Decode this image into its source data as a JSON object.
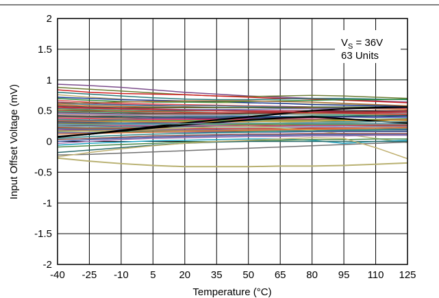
{
  "chart_data": {
    "type": "line",
    "title": "",
    "xlabel": "Temperature (°C)",
    "ylabel": "Input Offset Voltage (mV)",
    "x": [
      -40,
      -25,
      -10,
      5,
      20,
      35,
      50,
      65,
      80,
      95,
      110,
      125
    ],
    "xlim": [
      -40,
      125
    ],
    "ylim": [
      -2,
      2
    ],
    "yticks": [
      -2,
      -1.5,
      -1,
      -0.5,
      0,
      0.5,
      1,
      1.5,
      2
    ],
    "ytick_labels": [
      "-2",
      "-1.5",
      "-1",
      "-0.5",
      "0",
      "0.5",
      "1",
      "1.5",
      "2"
    ],
    "xtick_labels": [
      "-40",
      "-25",
      "-10",
      "5",
      "20",
      "35",
      "50",
      "65",
      "80",
      "95",
      "110",
      "125"
    ],
    "grid": true,
    "annotation": {
      "vs_prefix": "V",
      "vs_sub": "S",
      "vs_value": " = 36V",
      "units": "63 Units"
    },
    "series": [
      {
        "color": "#7a4a8a",
        "values": [
          0.93,
          0.91,
          0.88,
          0.84,
          0.8,
          0.77,
          0.74,
          0.72,
          0.7,
          0.68,
          0.66,
          0.64
        ]
      },
      {
        "color": "#6b7a30",
        "values": [
          0.88,
          0.85,
          0.82,
          0.79,
          0.76,
          0.74,
          0.73,
          0.74,
          0.75,
          0.74,
          0.72,
          0.7
        ]
      },
      {
        "color": "#d02020",
        "values": [
          0.84,
          0.8,
          0.78,
          0.77,
          0.76,
          0.74,
          0.72,
          0.7,
          0.69,
          0.67,
          0.65,
          0.63
        ]
      },
      {
        "color": "#2a7a7a",
        "values": [
          0.8,
          0.77,
          0.74,
          0.71,
          0.69,
          0.68,
          0.68,
          0.69,
          0.7,
          0.7,
          0.69,
          0.68
        ]
      },
      {
        "color": "#c2b070",
        "values": [
          0.76,
          0.72,
          0.69,
          0.66,
          0.64,
          0.63,
          0.63,
          0.62,
          0.61,
          0.6,
          0.59,
          0.58
        ]
      },
      {
        "color": "#1a3a9a",
        "values": [
          0.72,
          0.7,
          0.68,
          0.67,
          0.66,
          0.65,
          0.63,
          0.62,
          0.6,
          0.59,
          0.58,
          0.57
        ]
      },
      {
        "color": "#2a8a3a",
        "values": [
          0.7,
          0.67,
          0.65,
          0.64,
          0.64,
          0.64,
          0.65,
          0.66,
          0.67,
          0.68,
          0.68,
          0.69
        ]
      },
      {
        "color": "#e05050",
        "values": [
          0.67,
          0.64,
          0.62,
          0.61,
          0.6,
          0.59,
          0.58,
          0.57,
          0.56,
          0.55,
          0.54,
          0.53
        ]
      },
      {
        "color": "#8a3a6a",
        "values": [
          0.64,
          0.62,
          0.6,
          0.59,
          0.58,
          0.58,
          0.57,
          0.57,
          0.56,
          0.56,
          0.55,
          0.55
        ]
      },
      {
        "color": "#4a8aa0",
        "values": [
          0.62,
          0.6,
          0.59,
          0.58,
          0.58,
          0.58,
          0.57,
          0.56,
          0.55,
          0.54,
          0.53,
          0.52
        ]
      },
      {
        "color": "#d06a30",
        "values": [
          0.6,
          0.58,
          0.57,
          0.56,
          0.56,
          0.55,
          0.55,
          0.55,
          0.54,
          0.54,
          0.53,
          0.52
        ]
      },
      {
        "color": "#3a5a2a",
        "values": [
          0.58,
          0.56,
          0.55,
          0.55,
          0.55,
          0.55,
          0.55,
          0.55,
          0.56,
          0.56,
          0.56,
          0.56
        ]
      },
      {
        "color": "#b02a4a",
        "values": [
          0.57,
          0.55,
          0.54,
          0.53,
          0.52,
          0.51,
          0.5,
          0.5,
          0.49,
          0.49,
          0.48,
          0.48
        ]
      },
      {
        "color": "#6a6aaa",
        "values": [
          0.55,
          0.54,
          0.53,
          0.52,
          0.52,
          0.52,
          0.52,
          0.53,
          0.53,
          0.54,
          0.54,
          0.55
        ]
      },
      {
        "color": "#2a6a8a",
        "values": [
          0.53,
          0.52,
          0.51,
          0.5,
          0.5,
          0.5,
          0.49,
          0.48,
          0.47,
          0.46,
          0.45,
          0.44
        ]
      },
      {
        "color": "#9a9a40",
        "values": [
          0.52,
          0.51,
          0.5,
          0.49,
          0.48,
          0.47,
          0.47,
          0.46,
          0.46,
          0.45,
          0.44,
          0.44
        ]
      },
      {
        "color": "#c03a3a",
        "values": [
          0.5,
          0.49,
          0.48,
          0.48,
          0.47,
          0.47,
          0.47,
          0.47,
          0.47,
          0.47,
          0.47,
          0.47
        ]
      },
      {
        "color": "#3a9a6a",
        "values": [
          0.49,
          0.48,
          0.47,
          0.46,
          0.45,
          0.45,
          0.44,
          0.44,
          0.43,
          0.43,
          0.42,
          0.42
        ]
      },
      {
        "color": "#7a2a2a",
        "values": [
          0.47,
          0.46,
          0.45,
          0.45,
          0.45,
          0.45,
          0.46,
          0.46,
          0.47,
          0.48,
          0.49,
          0.5
        ]
      },
      {
        "color": "#5a7ad0",
        "values": [
          0.46,
          0.45,
          0.44,
          0.43,
          0.42,
          0.42,
          0.41,
          0.41,
          0.4,
          0.4,
          0.39,
          0.39
        ]
      },
      {
        "color": "#a0a0a0",
        "values": [
          0.45,
          0.44,
          0.43,
          0.43,
          0.43,
          0.43,
          0.43,
          0.44,
          0.44,
          0.45,
          0.45,
          0.46
        ]
      },
      {
        "color": "#d08a9a",
        "values": [
          0.44,
          0.43,
          0.42,
          0.41,
          0.4,
          0.4,
          0.39,
          0.38,
          0.37,
          0.36,
          0.35,
          0.34
        ]
      },
      {
        "color": "#1a5a5a",
        "values": [
          0.42,
          0.41,
          0.41,
          0.4,
          0.4,
          0.4,
          0.4,
          0.4,
          0.41,
          0.41,
          0.42,
          0.42
        ]
      },
      {
        "color": "#8a5a2a",
        "values": [
          0.41,
          0.4,
          0.39,
          0.38,
          0.38,
          0.37,
          0.37,
          0.36,
          0.36,
          0.35,
          0.35,
          0.34
        ]
      },
      {
        "color": "#3a3a8a",
        "values": [
          0.4,
          0.39,
          0.38,
          0.38,
          0.38,
          0.38,
          0.38,
          0.39,
          0.39,
          0.4,
          0.4,
          0.41
        ]
      },
      {
        "color": "#c0c060",
        "values": [
          0.39,
          0.38,
          0.37,
          0.36,
          0.35,
          0.34,
          0.33,
          0.32,
          0.31,
          0.3,
          0.29,
          0.28
        ]
      },
      {
        "color": "#e02a6a",
        "values": [
          0.38,
          0.37,
          0.36,
          0.36,
          0.36,
          0.36,
          0.36,
          0.36,
          0.36,
          0.36,
          0.36,
          0.36
        ]
      },
      {
        "color": "#2a9aaa",
        "values": [
          0.36,
          0.35,
          0.35,
          0.34,
          0.34,
          0.34,
          0.33,
          0.33,
          0.33,
          0.32,
          0.32,
          0.32
        ]
      },
      {
        "color": "#6a8a3a",
        "values": [
          0.35,
          0.34,
          0.34,
          0.34,
          0.34,
          0.34,
          0.35,
          0.35,
          0.35,
          0.36,
          0.36,
          0.37
        ]
      },
      {
        "color": "#aa3aaa",
        "values": [
          0.34,
          0.33,
          0.32,
          0.31,
          0.31,
          0.3,
          0.3,
          0.29,
          0.29,
          0.28,
          0.28,
          0.27
        ]
      },
      {
        "color": "#d0a030",
        "values": [
          0.33,
          0.32,
          0.32,
          0.32,
          0.32,
          0.32,
          0.32,
          0.33,
          0.33,
          0.34,
          0.34,
          0.35
        ]
      },
      {
        "color": "#4a4a4a",
        "values": [
          0.32,
          0.31,
          0.3,
          0.3,
          0.29,
          0.29,
          0.28,
          0.28,
          0.27,
          0.27,
          0.26,
          0.26
        ]
      },
      {
        "color": "#3a7ac0",
        "values": [
          0.31,
          0.3,
          0.3,
          0.29,
          0.29,
          0.29,
          0.29,
          0.29,
          0.29,
          0.29,
          0.29,
          0.29
        ]
      },
      {
        "color": "#b04a2a",
        "values": [
          0.3,
          0.29,
          0.28,
          0.28,
          0.27,
          0.27,
          0.27,
          0.26,
          0.26,
          0.26,
          0.25,
          0.25
        ]
      },
      {
        "color": "#5aaa5a",
        "values": [
          0.29,
          0.28,
          0.28,
          0.28,
          0.28,
          0.28,
          0.28,
          0.28,
          0.28,
          0.28,
          0.28,
          0.28
        ]
      },
      {
        "color": "#8a8ad0",
        "values": [
          0.28,
          0.27,
          0.27,
          0.26,
          0.26,
          0.26,
          0.25,
          0.25,
          0.25,
          0.24,
          0.24,
          0.24
        ]
      },
      {
        "color": "#c05a7a",
        "values": [
          0.27,
          0.26,
          0.26,
          0.25,
          0.25,
          0.25,
          0.25,
          0.25,
          0.26,
          0.26,
          0.27,
          0.27
        ]
      },
      {
        "color": "#2a4a6a",
        "values": [
          0.25,
          0.25,
          0.24,
          0.24,
          0.24,
          0.24,
          0.23,
          0.23,
          0.23,
          0.22,
          0.22,
          0.22
        ]
      },
      {
        "color": "#9ac0d0",
        "values": [
          0.24,
          0.24,
          0.23,
          0.23,
          0.23,
          0.23,
          0.23,
          0.23,
          0.23,
          0.23,
          0.23,
          0.23
        ]
      },
      {
        "color": "#7a6a2a",
        "values": [
          0.23,
          0.22,
          0.22,
          0.22,
          0.22,
          0.21,
          0.21,
          0.21,
          0.21,
          0.2,
          0.2,
          0.2
        ]
      },
      {
        "color": "#d04040",
        "values": [
          0.22,
          0.21,
          0.21,
          0.21,
          0.21,
          0.21,
          0.21,
          0.21,
          0.22,
          0.22,
          0.22,
          0.23
        ]
      },
      {
        "color": "#4a9a8a",
        "values": [
          0.21,
          0.2,
          0.2,
          0.19,
          0.19,
          0.19,
          0.18,
          0.18,
          0.18,
          0.17,
          0.17,
          0.17
        ]
      },
      {
        "color": "#6a3a9a",
        "values": [
          0.2,
          0.19,
          0.19,
          0.19,
          0.19,
          0.19,
          0.19,
          0.19,
          0.19,
          0.19,
          0.19,
          0.19
        ]
      },
      {
        "color": "#aa8a5a",
        "values": [
          0.18,
          0.18,
          0.18,
          0.18,
          0.18,
          0.18,
          0.19,
          0.19,
          0.19,
          0.2,
          0.2,
          0.21
        ]
      },
      {
        "color": "#3a6a3a",
        "values": [
          0.16,
          0.16,
          0.16,
          0.16,
          0.16,
          0.16,
          0.16,
          0.16,
          0.16,
          0.16,
          0.16,
          0.16
        ]
      },
      {
        "color": "#c0c080",
        "values": [
          0.15,
          0.16,
          0.18,
          0.2,
          0.22,
          0.24,
          0.24,
          0.22,
          0.18,
          0.12,
          0.05,
          -0.02
        ]
      },
      {
        "color": "#5a5aaa",
        "values": [
          0.14,
          0.14,
          0.14,
          0.15,
          0.15,
          0.15,
          0.15,
          0.15,
          0.16,
          0.16,
          0.16,
          0.16
        ]
      },
      {
        "color": "#e07a3a",
        "values": [
          0.12,
          0.13,
          0.14,
          0.15,
          0.16,
          0.17,
          0.18,
          0.19,
          0.2,
          0.21,
          0.22,
          0.23
        ]
      },
      {
        "color": "#000000",
        "width": 2.2,
        "values": [
          0.08,
          0.12,
          0.17,
          0.22,
          0.27,
          0.31,
          0.35,
          0.38,
          0.4,
          0.37,
          0.33,
          0.3
        ]
      },
      {
        "color": "#000000",
        "width": 2.2,
        "values": [
          0.07,
          0.12,
          0.18,
          0.24,
          0.3,
          0.35,
          0.4,
          0.45,
          0.5,
          0.53,
          0.55,
          0.56
        ]
      },
      {
        "color": "#2a8a8a",
        "values": [
          0.05,
          0.08,
          0.1,
          0.12,
          0.13,
          0.14,
          0.15,
          0.16,
          0.17,
          0.18,
          0.19,
          0.2
        ]
      },
      {
        "color": "#8a4a4a",
        "values": [
          0.03,
          0.05,
          0.07,
          0.09,
          0.1,
          0.11,
          0.12,
          0.12,
          0.13,
          0.13,
          0.13,
          0.13
        ]
      },
      {
        "color": "#3a5aaa",
        "values": [
          0.0,
          0.03,
          0.05,
          0.07,
          0.08,
          0.09,
          0.1,
          0.1,
          0.11,
          0.11,
          0.11,
          0.11
        ]
      },
      {
        "color": "#9a6aaa",
        "values": [
          -0.03,
          0.0,
          0.03,
          0.05,
          0.06,
          0.07,
          0.08,
          0.08,
          0.09,
          0.09,
          0.1,
          0.1
        ]
      },
      {
        "color": "#1aa0c0",
        "values": [
          -0.06,
          -0.03,
          -0.01,
          0.01,
          0.02,
          0.03,
          0.04,
          0.04,
          0.02,
          -0.03,
          0.0,
          0.02
        ]
      },
      {
        "color": "#4a8a4a",
        "values": [
          -0.09,
          -0.07,
          -0.05,
          -0.03,
          -0.01,
          0.0,
          0.01,
          0.02,
          0.03,
          0.03,
          0.04,
          0.04
        ]
      },
      {
        "color": "#707070",
        "values": [
          -0.22,
          -0.21,
          -0.19,
          -0.17,
          -0.15,
          -0.13,
          -0.11,
          -0.09,
          -0.07,
          -0.05,
          -0.03,
          -0.01
        ]
      },
      {
        "color": "#2a6a6a",
        "values": [
          -0.18,
          -0.14,
          -0.1,
          -0.06,
          -0.03,
          -0.01,
          0.0,
          0.0,
          0.0,
          0.0,
          0.0,
          0.0
        ]
      },
      {
        "color": "#c0b070",
        "values": [
          -0.25,
          -0.18,
          -0.12,
          -0.07,
          -0.03,
          0.0,
          0.02,
          0.04,
          0.06,
          0.05,
          -0.1,
          -0.28
        ]
      },
      {
        "color": "#b8b070",
        "width": 2.0,
        "values": [
          -0.27,
          -0.32,
          -0.36,
          -0.39,
          -0.41,
          -0.41,
          -0.41,
          -0.4,
          -0.4,
          -0.39,
          -0.37,
          -0.35
        ]
      },
      {
        "color": "#c03030",
        "values": [
          0.55,
          0.54,
          0.53,
          0.52,
          0.51,
          0.5,
          0.49,
          0.48,
          0.47,
          0.46,
          0.45,
          0.44
        ]
      },
      {
        "color": "#6aa0a0",
        "values": [
          0.27,
          0.27,
          0.28,
          0.28,
          0.29,
          0.29,
          0.3,
          0.3,
          0.31,
          0.31,
          0.32,
          0.32
        ]
      },
      {
        "color": "#a06a30",
        "values": [
          0.62,
          0.63,
          0.64,
          0.65,
          0.66,
          0.66,
          0.66,
          0.65,
          0.64,
          0.62,
          0.6,
          0.58
        ]
      }
    ]
  }
}
